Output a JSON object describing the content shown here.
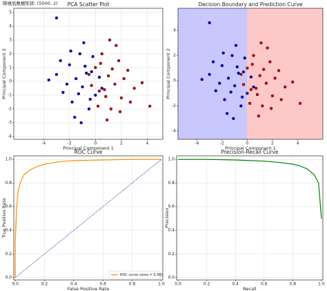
{
  "header": "降维后数据形状: (5000, 2)",
  "chart_data": [
    {
      "type": "scatter",
      "title": "PCA Scatter Plot",
      "xlabel": "Principal Component 1",
      "ylabel": "Principal Component 2",
      "xlim": [
        -6.3,
        5.2
      ],
      "ylim": [
        -4.2,
        5.3
      ],
      "xticks": [
        -4,
        -2,
        0,
        2,
        4
      ],
      "yticks": [
        -4,
        -3,
        -2,
        -1,
        0,
        1,
        2,
        3,
        4,
        5
      ],
      "grid": true,
      "series": [
        {
          "color": "#0000d0",
          "x": [
            -3,
            -2.5,
            -2,
            -1.8,
            -1.5,
            -1.2,
            -1,
            -0.8,
            -0.5,
            -0.3,
            0,
            0.3,
            -2.2,
            -1.6,
            -0.9,
            -0.4,
            -3.6,
            -1.3,
            -0.7,
            -2.7,
            0.5,
            -1.9,
            -1.1,
            -0.2,
            -3
          ],
          "values": [
            0.5,
            -0.8,
            1.2,
            -1.5,
            0.2,
            2,
            -0.4,
            1.1,
            -2,
            0.7,
            -1,
            0.3,
            -0.2,
            -2.6,
            2.8,
            -1.3,
            0.1,
            -0.9,
            0.6,
            1.5,
            -0.5,
            2.2,
            -3,
            1.8,
            4.6
          ]
        },
        {
          "color": "#c80000",
          "x": [
            3,
            2.5,
            2,
            1.8,
            1.5,
            1.2,
            1,
            0.8,
            0.5,
            0.3,
            0,
            -0.3,
            2.2,
            1.6,
            0.9,
            0.4,
            3.6,
            1.3,
            0.7,
            2.7,
            -0.5,
            1.9,
            1.1,
            0.2,
            4.2
          ],
          "values": [
            -0.5,
            0.8,
            -1.2,
            1.5,
            -0.2,
            -2,
            0.4,
            -1.1,
            2,
            -0.7,
            1,
            -0.3,
            0.2,
            2.6,
            -2.8,
            1.3,
            -0.1,
            0.9,
            -0.6,
            -1.5,
            0.5,
            -2.2,
            3,
            -1.8,
            -1.8
          ]
        }
      ]
    },
    {
      "type": "decision",
      "title": "Decision Boundary and Prediction Curve",
      "xlabel": "Principal Component 1",
      "ylabel": "Principal Component 2",
      "xlim": [
        -5.5,
        6
      ],
      "ylim": [
        -4.65,
        5.75
      ],
      "xticks": [
        -4,
        -2,
        0,
        2,
        4
      ],
      "yticks": [
        -4,
        -2,
        0,
        2,
        4
      ],
      "grid": false,
      "boundary": 0,
      "region_colors": [
        "#c8c8ff",
        "#ffc8c8"
      ]
    },
    {
      "type": "line",
      "title": "ROC Curve",
      "xlabel": "False Positive Rate",
      "ylabel": "True Positive Rate",
      "xlim": [
        -0.01,
        1.01
      ],
      "ylim": [
        -0.02,
        1.03
      ],
      "xticks": [
        {
          "value": 0,
          "label": "0.0"
        },
        0.2,
        0.4,
        0.6,
        0.8,
        {
          "value": 1,
          "label": "1.0"
        }
      ],
      "yticks": [
        {
          "value": 0,
          "label": "0.0"
        },
        0.2,
        0.4,
        0.6,
        0.8,
        {
          "value": 1,
          "label": "1.0"
        }
      ],
      "grid": true,
      "legend": "lower right",
      "series": [
        {
          "name": "ROC curve (area = 0.96)",
          "color": "darkorange",
          "x": [
            0,
            0,
            0.01,
            0.02,
            0.04,
            0.06,
            0.1,
            0.15,
            0.2,
            0.3,
            0.4,
            0.6,
            0.8,
            1
          ],
          "values": [
            0,
            0.3,
            0.6,
            0.74,
            0.82,
            0.87,
            0.91,
            0.94,
            0.96,
            0.98,
            0.99,
            0.995,
            1,
            1
          ]
        },
        {
          "color": "navy",
          "dashed": true,
          "x": [
            0,
            1
          ],
          "values": [
            0,
            1
          ]
        }
      ]
    },
    {
      "type": "line",
      "title": "Precision-Recall Curve",
      "xlabel": "Recall",
      "ylabel": "Precision",
      "xlim": [
        -0.01,
        1.01
      ],
      "ylim": [
        -0.02,
        1.03
      ],
      "xticks": [
        {
          "value": 0,
          "label": "0.0"
        },
        0.2,
        0.4,
        0.6,
        0.8,
        {
          "value": 1,
          "label": "1.0"
        }
      ],
      "yticks": [
        {
          "value": 0,
          "label": "0.0"
        },
        0.2,
        0.4,
        0.6,
        0.8,
        {
          "value": 1,
          "label": "1.0"
        }
      ],
      "grid": true,
      "series": [
        {
          "color": "green",
          "x": [
            0,
            0.2,
            0.4,
            0.6,
            0.7,
            0.8,
            0.85,
            0.9,
            0.95,
            0.98,
            1
          ],
          "values": [
            1,
            1,
            0.995,
            0.985,
            0.975,
            0.96,
            0.945,
            0.92,
            0.87,
            0.8,
            0.5
          ]
        }
      ]
    }
  ]
}
